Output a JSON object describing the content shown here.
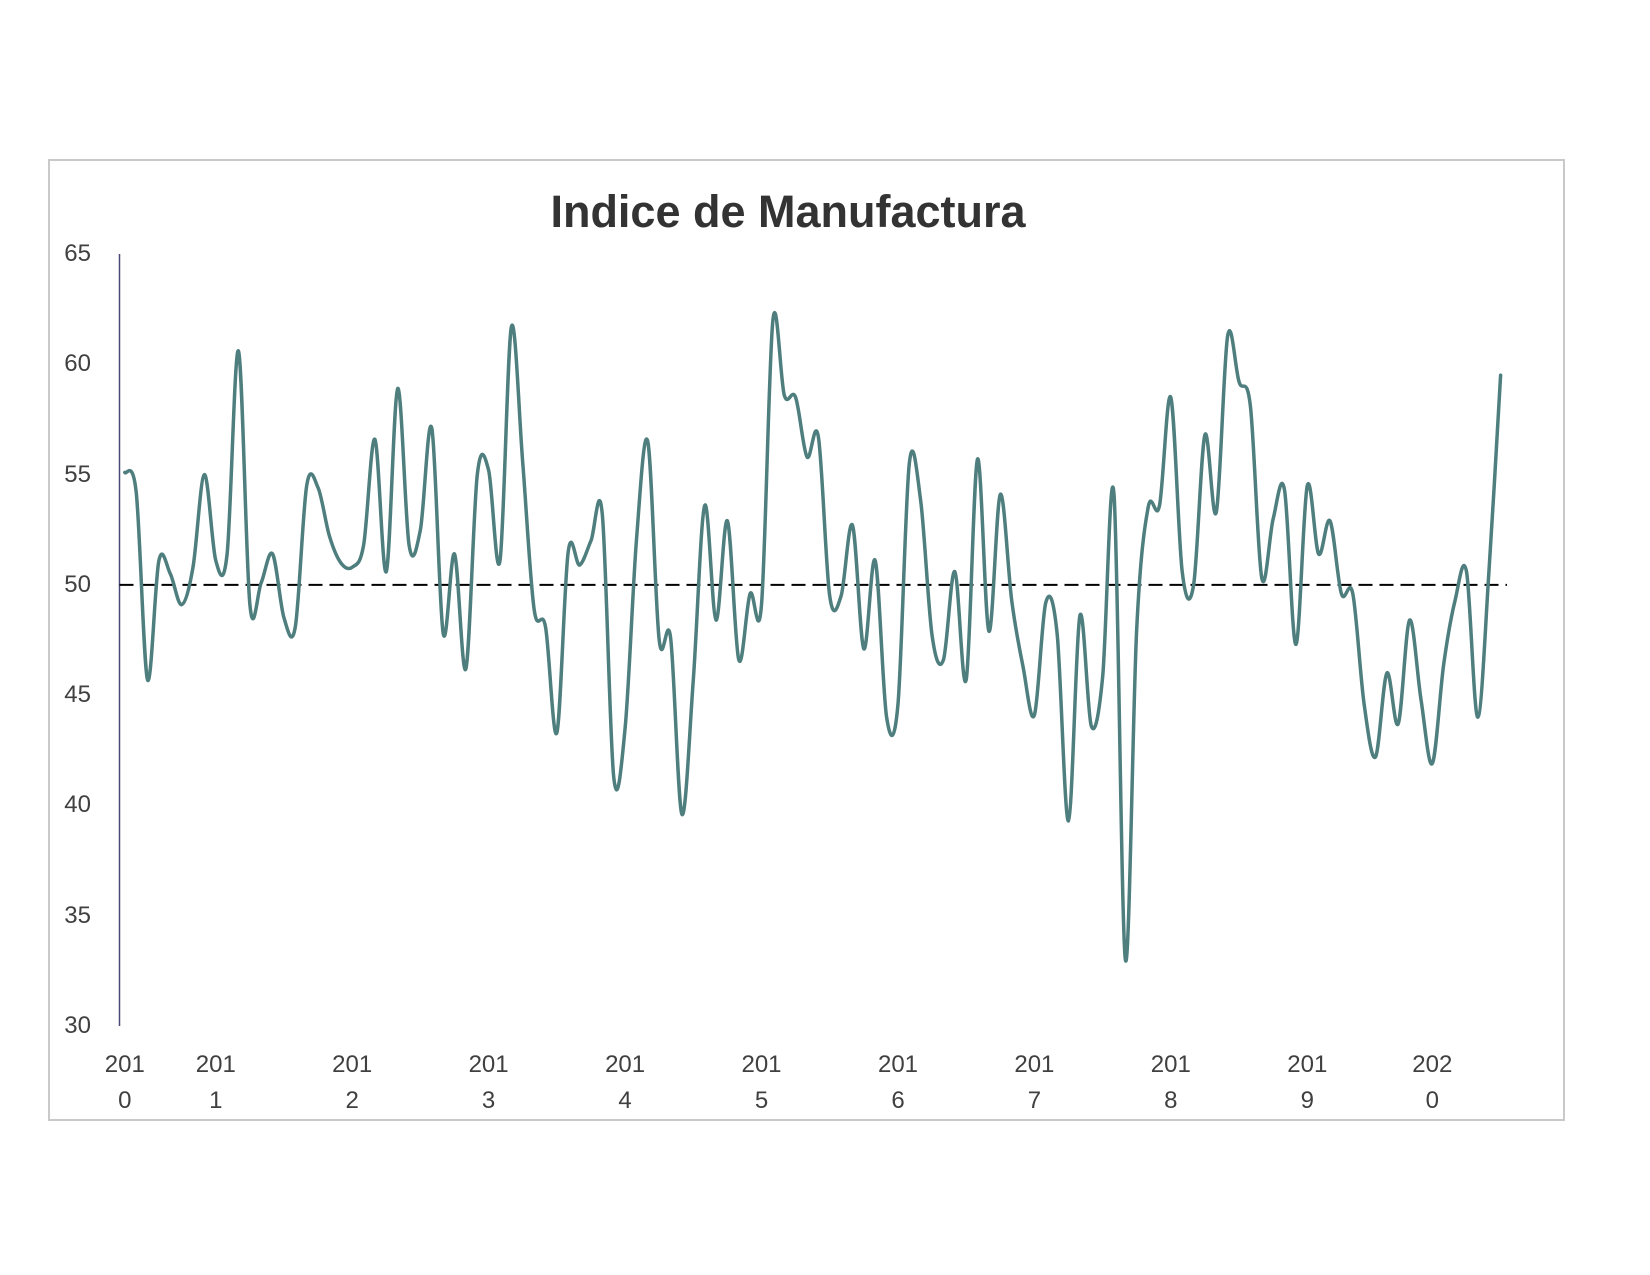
{
  "chart_data": {
    "type": "line",
    "title": "Indice de Manufactura",
    "ylim": [
      30,
      65
    ],
    "y_ticks": [
      65,
      60,
      55,
      50,
      45,
      40,
      35,
      30
    ],
    "x_tick_labels": [
      "2010",
      "2011",
      "2012",
      "2013",
      "2014",
      "2015",
      "2016",
      "2017",
      "2018",
      "2019",
      "2020"
    ],
    "series": [
      {
        "color": "#4e7e7d",
        "smoothed": true,
        "values": [
          55.1,
          54.2,
          45.7,
          51.1,
          50.5,
          49.1,
          50.8,
          55.0,
          51.1,
          51.4,
          60.6,
          49.1,
          50.1,
          51.4,
          48.5,
          48.1,
          54.5,
          54.4,
          52.2,
          51.0,
          50.8,
          51.8,
          56.6,
          50.6,
          58.9,
          51.8,
          52.5,
          57.1,
          47.8,
          51.4,
          46.2,
          55.0,
          55.2,
          51.1,
          61.7,
          55.5,
          48.9,
          48.1,
          43.3,
          51.5,
          50.9,
          52.0,
          53.2,
          41.3,
          43.5,
          52.0,
          56.5,
          47.5,
          47.6,
          39.6,
          45.7,
          53.6,
          48.4,
          52.9,
          46.6,
          49.6,
          49.1,
          62.0,
          58.6,
          58.5,
          55.8,
          56.7,
          49.5,
          49.5,
          52.7,
          47.1,
          51.1,
          44.0,
          44.6,
          55.5,
          53.8,
          47.7,
          46.6,
          50.6,
          45.7,
          55.7,
          47.9,
          54.1,
          49.3,
          46.3,
          44.1,
          49.2,
          47.8,
          39.3,
          48.6,
          43.6,
          45.8,
          54.1,
          33.0,
          48.0,
          53.5,
          53.6,
          58.5,
          50.6,
          50.0,
          56.8,
          53.3,
          61.3,
          59.2,
          58.1,
          50.3,
          53.0,
          54.3,
          47.3,
          54.5,
          51.4,
          52.9,
          49.6,
          49.6,
          44.6,
          42.2,
          46.0,
          43.7,
          48.4,
          44.8,
          41.9,
          46.4,
          49.3,
          50.6,
          44.0,
          50.8,
          59.5
        ]
      }
    ],
    "reference_line": {
      "y": 50,
      "dashed": true,
      "color": "#000000"
    },
    "grid": false,
    "legend": false
  },
  "colors": {
    "axis": "#4a4a78",
    "tick_text": "#404040",
    "title_text": "#333333",
    "frame": "#c9c9c9"
  }
}
